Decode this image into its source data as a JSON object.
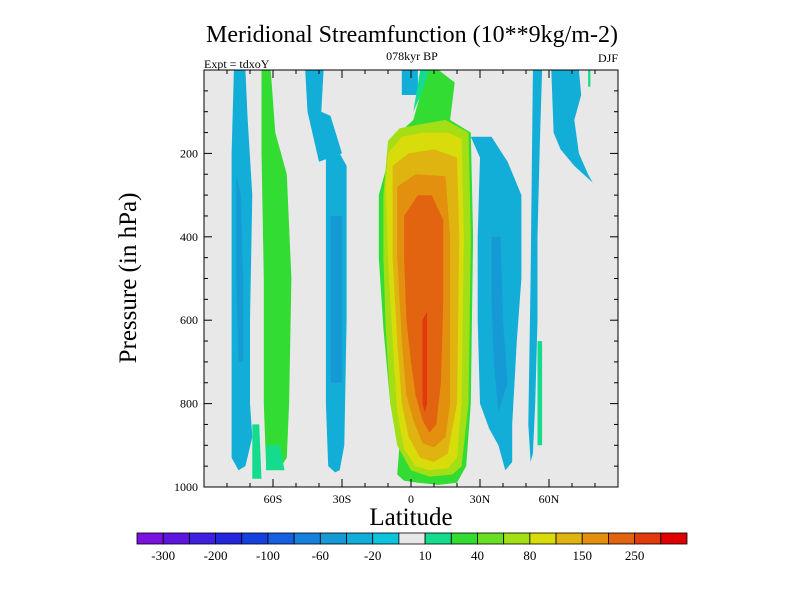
{
  "chart_data": {
    "type": "contour",
    "title": "Meridional Streamfunction (10**9kg/m-2)",
    "subtitle_center": "078kyr BP",
    "subtitle_left": "Expt = tdxoY",
    "subtitle_right": "DJF",
    "xlabel": "Latitude",
    "ylabel": "Pressure (in hPa)",
    "xlim": [
      -90,
      90
    ],
    "ylim": [
      1000,
      0
    ],
    "x_ticks": [
      {
        "value": -60,
        "label": "60S"
      },
      {
        "value": -30,
        "label": "30S"
      },
      {
        "value": 0,
        "label": "0"
      },
      {
        "value": 30,
        "label": "30N"
      },
      {
        "value": 60,
        "label": "60N"
      }
    ],
    "y_ticks": [
      {
        "value": 200,
        "label": "200"
      },
      {
        "value": 400,
        "label": "400"
      },
      {
        "value": 600,
        "label": "600"
      },
      {
        "value": 800,
        "label": "800"
      },
      {
        "value": 1000,
        "label": "1000"
      }
    ],
    "background_color": "#e8e8e8",
    "levels": [
      -300,
      -250,
      -200,
      -150,
      -100,
      -80,
      -60,
      -40,
      -20,
      -10,
      10,
      20,
      40,
      60,
      80,
      100,
      150,
      200,
      250,
      300
    ],
    "colorbar_colors": [
      "#7a12e0",
      "#5d16de",
      "#3f1fe0",
      "#2226dd",
      "#1540e0",
      "#1560e0",
      "#1780dc",
      "#169ad6",
      "#12aed8",
      "#0ec3dc",
      "#e8e8e8",
      "#14dc8c",
      "#33dc33",
      "#6ade23",
      "#a4de14",
      "#d8dc0a",
      "#e0b410",
      "#e2900e",
      "#e26410",
      "#e03a0e",
      "#e00000"
    ],
    "colorbar_labels": [
      {
        "after_level": 0,
        "text": "-300"
      },
      {
        "after_level": 2,
        "text": "-200"
      },
      {
        "after_level": 4,
        "text": "-100"
      },
      {
        "after_level": 6,
        "text": "-60"
      },
      {
        "after_level": 8,
        "text": "-20"
      },
      {
        "after_level": 10,
        "text": "10"
      },
      {
        "after_level": 12,
        "text": "40"
      },
      {
        "after_level": 14,
        "text": "80"
      },
      {
        "after_level": 16,
        "text": "150"
      },
      {
        "after_level": 18,
        "text": "250"
      }
    ],
    "cells": [
      {
        "name": "sh-polar-negative-cell",
        "color": "#12aed8",
        "ring": [
          [
            -77,
            0
          ],
          [
            -72,
            0
          ],
          [
            -71,
            120
          ],
          [
            -69,
            300
          ],
          [
            -70,
            600
          ],
          [
            -70,
            800
          ],
          [
            -69,
            880
          ],
          [
            -72,
            950
          ],
          [
            -75,
            960
          ],
          [
            -78,
            930
          ],
          [
            -78,
            800
          ],
          [
            -78,
            600
          ],
          [
            -78,
            400
          ],
          [
            -78,
            200
          ]
        ]
      },
      {
        "name": "sh-polar-negative-core",
        "color": "#169ad6",
        "ring": [
          [
            -76,
            250
          ],
          [
            -74,
            300
          ],
          [
            -73,
            500
          ],
          [
            -73,
            700
          ],
          [
            -75,
            700
          ],
          [
            -76,
            500
          ]
        ]
      },
      {
        "name": "sh-ferrel-positive-cell",
        "color": "#33dc33",
        "ring": [
          [
            -65,
            0
          ],
          [
            -61,
            0
          ],
          [
            -59,
            150
          ],
          [
            -54,
            250
          ],
          [
            -52,
            500
          ],
          [
            -53,
            800
          ],
          [
            -54,
            930
          ],
          [
            -57,
            955
          ],
          [
            -60,
            960
          ],
          [
            -63,
            950
          ],
          [
            -64,
            800
          ],
          [
            -64,
            500
          ],
          [
            -65,
            200
          ]
        ]
      },
      {
        "name": "sh-ferrel-positive-edge",
        "color": "#14dc8c",
        "ring": [
          [
            -63,
            900
          ],
          [
            -57,
            900
          ],
          [
            -55,
            960
          ],
          [
            -63,
            960
          ]
        ]
      },
      {
        "name": "sh-upper-negative-patch",
        "color": "#12aed8",
        "ring": [
          [
            -46,
            0
          ],
          [
            -38,
            0
          ],
          [
            -39,
            100
          ],
          [
            -35,
            110
          ],
          [
            -30,
            200
          ],
          [
            -40,
            220
          ],
          [
            -45,
            100
          ]
        ]
      },
      {
        "name": "sh-hadley-negative-cell",
        "color": "#12aed8",
        "ring": [
          [
            -37,
            200
          ],
          [
            -31,
            200
          ],
          [
            -28,
            230
          ],
          [
            -28,
            600
          ],
          [
            -29,
            900
          ],
          [
            -31,
            960
          ],
          [
            -33,
            965
          ],
          [
            -36,
            950
          ],
          [
            -37,
            800
          ],
          [
            -37,
            600
          ],
          [
            -37,
            400
          ]
        ]
      },
      {
        "name": "sh-hadley-negative-core",
        "color": "#169ad6",
        "ring": [
          [
            -35,
            350
          ],
          [
            -30,
            350
          ],
          [
            -30,
            750
          ],
          [
            -35,
            750
          ]
        ]
      },
      {
        "name": "tropical-upper-strip",
        "color": "#12aed8",
        "ring": [
          [
            -4,
            0
          ],
          [
            3,
            0
          ],
          [
            3,
            60
          ],
          [
            -4,
            60
          ]
        ]
      },
      {
        "name": "winter-hadley-contour-20",
        "color": "#33dc33",
        "ring": [
          [
            8,
            0
          ],
          [
            12,
            0
          ],
          [
            19,
            30
          ],
          [
            17,
            120
          ],
          [
            26,
            150
          ],
          [
            27,
            400
          ],
          [
            26,
            800
          ],
          [
            24,
            950
          ],
          [
            20,
            990
          ],
          [
            12,
            995
          ],
          [
            3,
            990
          ],
          [
            -3,
            985
          ],
          [
            -6,
            970
          ],
          [
            -5,
            900
          ],
          [
            -9,
            800
          ],
          [
            -12,
            620
          ],
          [
            -14,
            450
          ],
          [
            -14,
            300
          ],
          [
            -9,
            200
          ],
          [
            -8,
            160
          ],
          [
            -3,
            140
          ],
          [
            1,
            120
          ],
          [
            4,
            60
          ]
        ]
      },
      {
        "name": "winter-hadley-contour-10",
        "color": "#14dc8c",
        "ring": [
          [
            4,
            0
          ],
          [
            8,
            0
          ],
          [
            5,
            50
          ],
          [
            1,
            100
          ]
        ]
      },
      {
        "name": "winter-hadley-contour-40",
        "color": "#a4de14",
        "ring": [
          [
            -10,
            170
          ],
          [
            -5,
            140
          ],
          [
            4,
            130
          ],
          [
            15,
            120
          ],
          [
            25,
            150
          ],
          [
            26,
            400
          ],
          [
            25,
            800
          ],
          [
            22,
            950
          ],
          [
            18,
            970
          ],
          [
            8,
            975
          ],
          [
            0,
            960
          ],
          [
            -6,
            900
          ],
          [
            -9,
            800
          ],
          [
            -11,
            620
          ],
          [
            -12,
            450
          ],
          [
            -12,
            300
          ]
        ]
      },
      {
        "name": "winter-hadley-contour-80",
        "color": "#d8dc0a",
        "ring": [
          [
            -10,
            200
          ],
          [
            -4,
            160
          ],
          [
            5,
            150
          ],
          [
            16,
            150
          ],
          [
            22,
            165
          ],
          [
            23,
            400
          ],
          [
            22,
            800
          ],
          [
            20,
            930
          ],
          [
            16,
            955
          ],
          [
            8,
            960
          ],
          [
            2,
            950
          ],
          [
            -3,
            910
          ],
          [
            -6,
            820
          ],
          [
            -8,
            650
          ],
          [
            -10,
            450
          ],
          [
            -11,
            280
          ]
        ]
      },
      {
        "name": "winter-hadley-contour-100",
        "color": "#e0b410",
        "ring": [
          [
            -8,
            230
          ],
          [
            -1,
            200
          ],
          [
            10,
            190
          ],
          [
            20,
            210
          ],
          [
            21,
            400
          ],
          [
            20,
            800
          ],
          [
            16,
            920
          ],
          [
            10,
            940
          ],
          [
            4,
            930
          ],
          [
            -1,
            880
          ],
          [
            -4,
            800
          ],
          [
            -6,
            650
          ],
          [
            -8,
            450
          ]
        ]
      },
      {
        "name": "winter-hadley-contour-150",
        "color": "#e2900e",
        "ring": [
          [
            -6,
            280
          ],
          [
            2,
            250
          ],
          [
            15,
            255
          ],
          [
            17,
            400
          ],
          [
            17,
            800
          ],
          [
            15,
            880
          ],
          [
            10,
            905
          ],
          [
            5,
            895
          ],
          [
            1,
            840
          ],
          [
            -2,
            780
          ],
          [
            -4,
            650
          ],
          [
            -6,
            450
          ]
        ]
      },
      {
        "name": "winter-hadley-contour-200",
        "color": "#e26410",
        "ring": [
          [
            -3,
            350
          ],
          [
            3,
            300
          ],
          [
            9,
            300
          ],
          [
            14,
            360
          ],
          [
            14,
            560
          ],
          [
            13,
            750
          ],
          [
            11,
            850
          ],
          [
            8,
            870
          ],
          [
            5,
            840
          ],
          [
            2,
            780
          ],
          [
            0,
            700
          ],
          [
            -2,
            600
          ],
          [
            -3,
            450
          ]
        ]
      },
      {
        "name": "winter-hadley-contour-250",
        "color": "#e03a0e",
        "ring": [
          [
            5,
            600
          ],
          [
            7,
            580
          ],
          [
            7,
            700
          ],
          [
            7,
            800
          ],
          [
            6,
            820
          ],
          [
            5,
            800
          ],
          [
            5,
            700
          ]
        ]
      },
      {
        "name": "nh-negative-cell",
        "color": "#12aed8",
        "ring": [
          [
            30,
            210
          ],
          [
            26,
            160
          ],
          [
            35,
            160
          ],
          [
            42,
            220
          ],
          [
            48,
            300
          ],
          [
            48,
            500
          ],
          [
            46,
            650
          ],
          [
            44,
            850
          ],
          [
            44,
            940
          ],
          [
            41,
            960
          ],
          [
            38,
            900
          ],
          [
            34,
            860
          ],
          [
            30,
            800
          ],
          [
            29,
            600
          ],
          [
            29,
            400
          ]
        ]
      },
      {
        "name": "nh-negative-core",
        "color": "#169ad6",
        "ring": [
          [
            35,
            400
          ],
          [
            39,
            400
          ],
          [
            40,
            600
          ],
          [
            42,
            750
          ],
          [
            38,
            820
          ],
          [
            36,
            700
          ],
          [
            35,
            550
          ]
        ]
      },
      {
        "name": "nh-midlat-negative-strip",
        "color": "#12aed8",
        "ring": [
          [
            53,
            0
          ],
          [
            57,
            0
          ],
          [
            56,
            180
          ],
          [
            55,
            400
          ],
          [
            55,
            600
          ],
          [
            54,
            800
          ],
          [
            53,
            920
          ],
          [
            52,
            940
          ],
          [
            51,
            850
          ],
          [
            52,
            500
          ]
        ]
      },
      {
        "name": "nh-positive-sliver",
        "color": "#14dc8c",
        "ring": [
          [
            55,
            650
          ],
          [
            57,
            650
          ],
          [
            57,
            900
          ],
          [
            55,
            900
          ]
        ]
      },
      {
        "name": "nh-polar-negative-patch",
        "color": "#12aed8",
        "ring": [
          [
            61,
            0
          ],
          [
            73,
            0
          ],
          [
            74,
            60
          ],
          [
            71,
            120
          ],
          [
            73,
            200
          ],
          [
            77,
            250
          ],
          [
            79,
            270
          ],
          [
            71,
            230
          ],
          [
            65,
            190
          ],
          [
            62,
            150
          ]
        ]
      },
      {
        "name": "nh-polar-positive-sliver",
        "color": "#14dc8c",
        "ring": [
          [
            77,
            0
          ],
          [
            78,
            0
          ],
          [
            78,
            40
          ],
          [
            77,
            40
          ]
        ]
      },
      {
        "name": "sh-ferrel-lower-edge",
        "color": "#14dc8c",
        "ring": [
          [
            -69,
            850
          ],
          [
            -66,
            850
          ],
          [
            -65,
            980
          ],
          [
            -69,
            980
          ]
        ]
      }
    ]
  }
}
